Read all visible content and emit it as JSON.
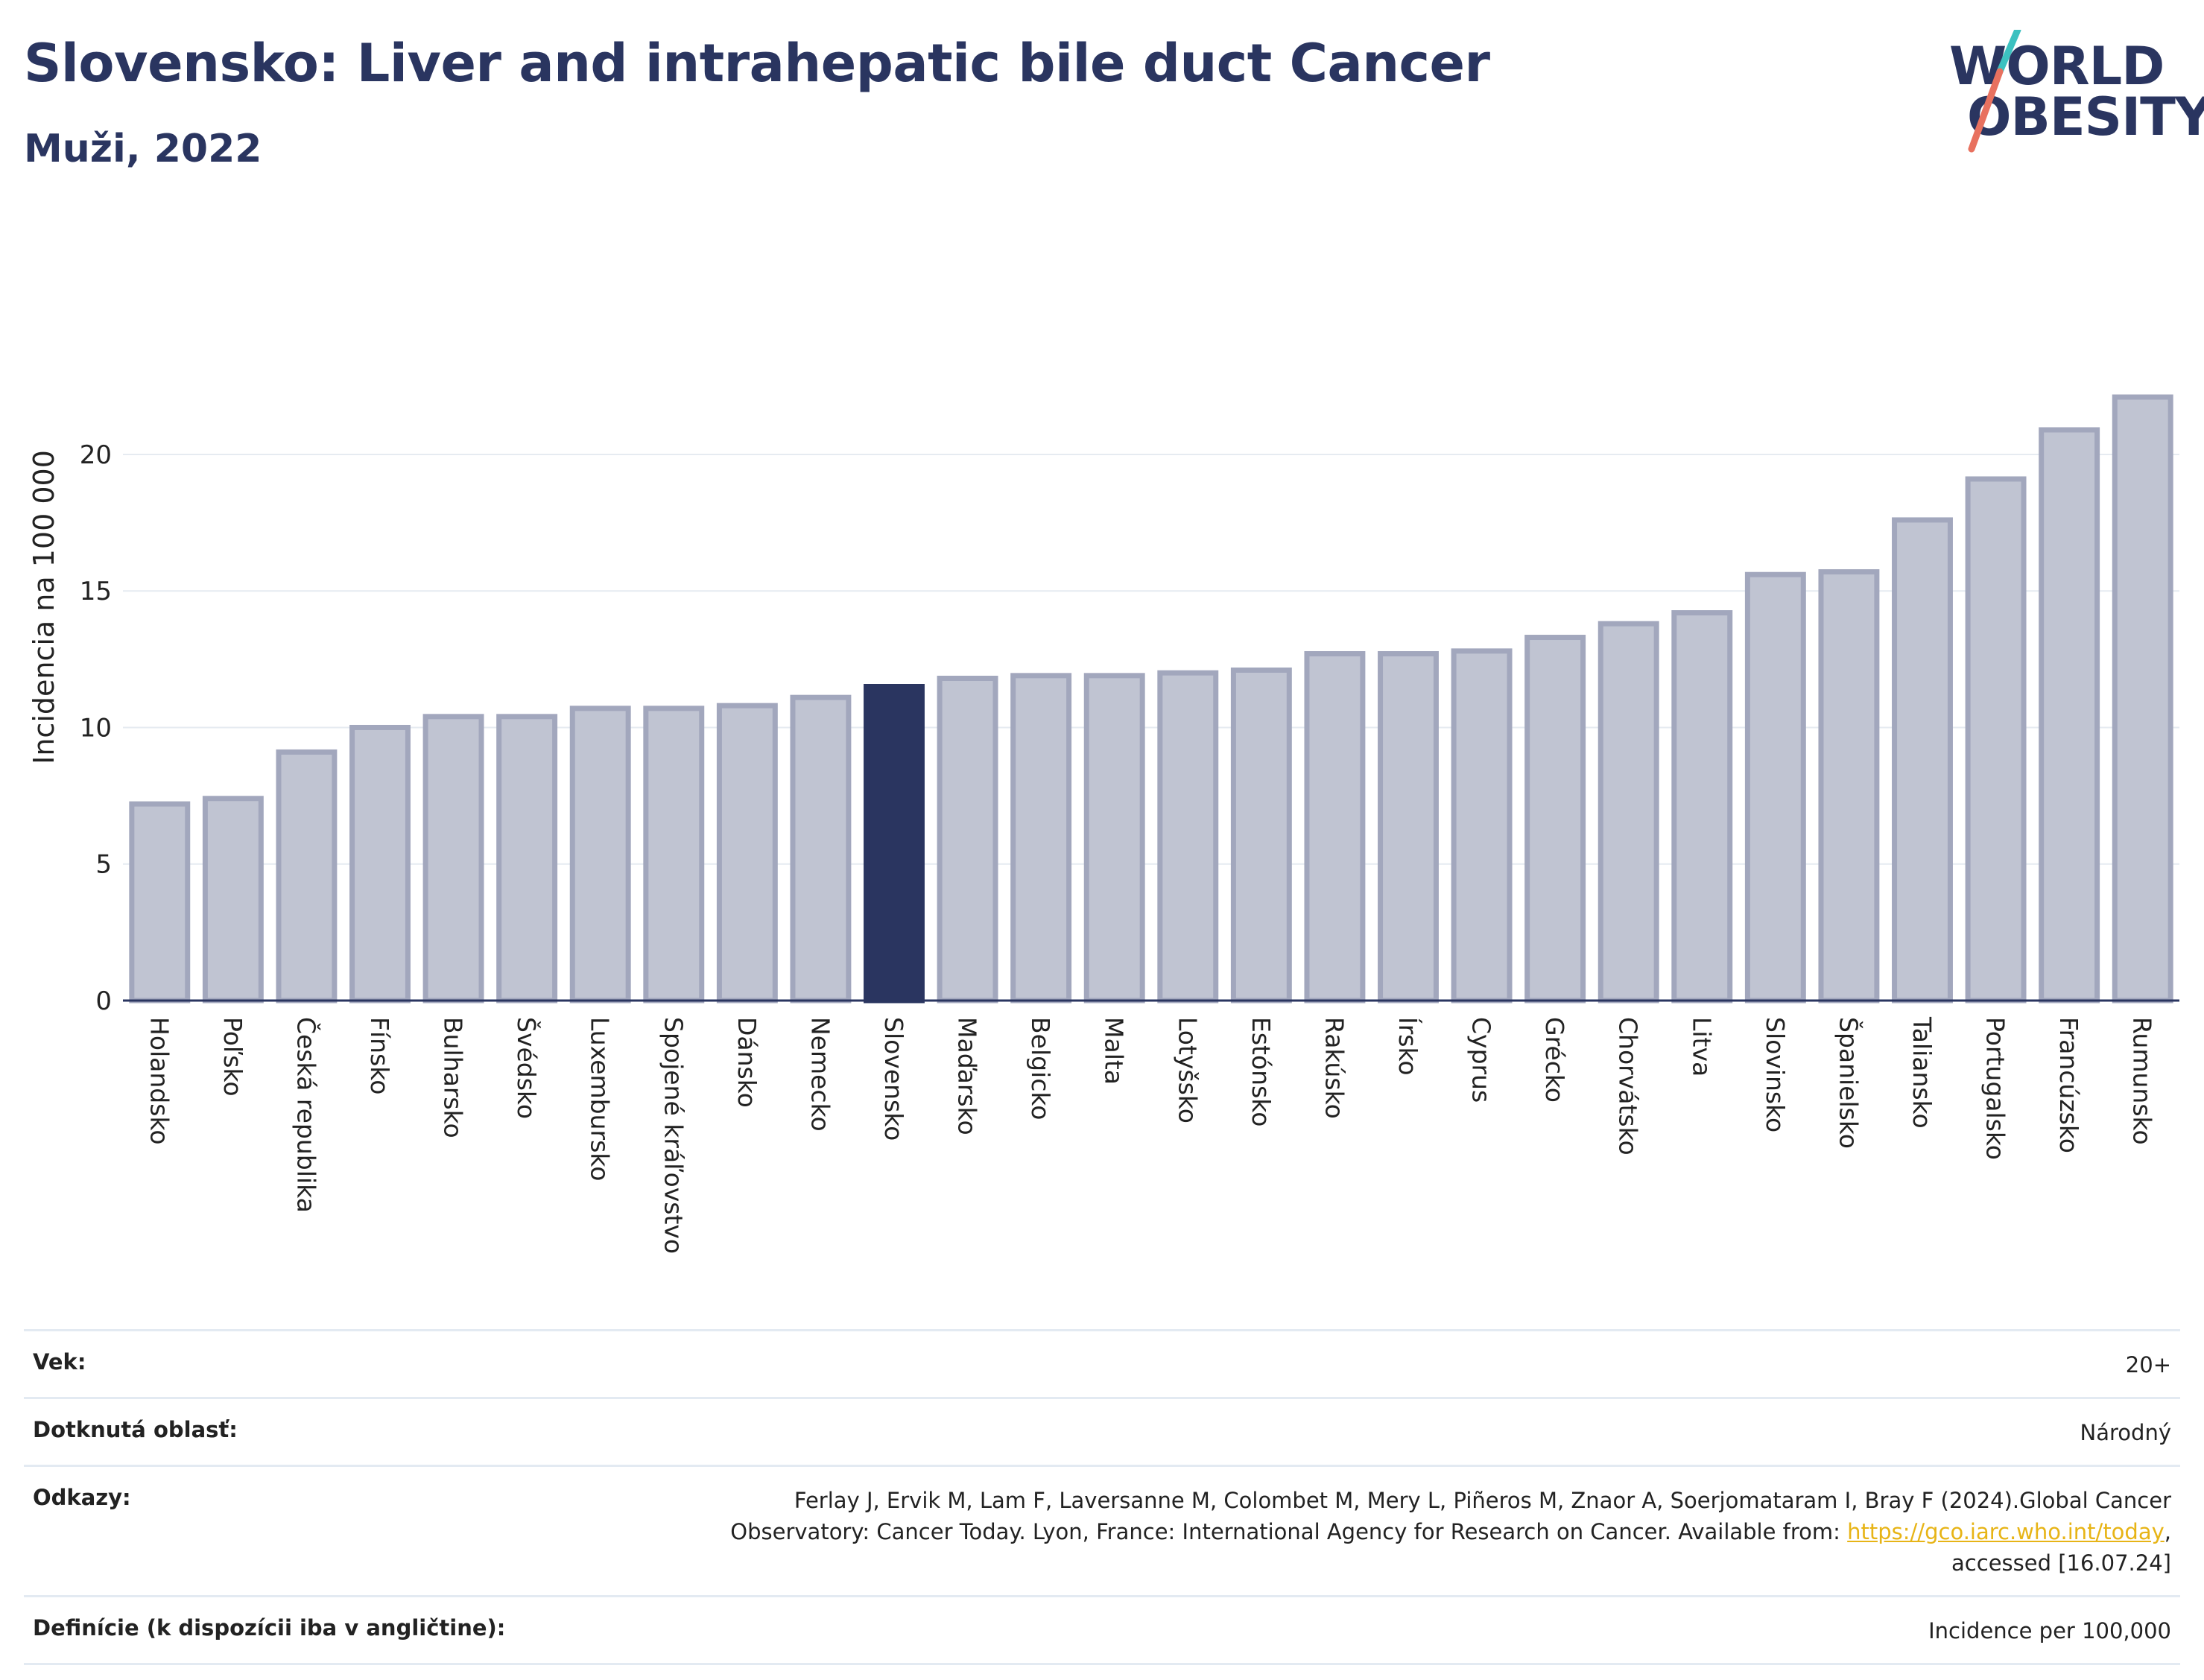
{
  "header": {
    "title": "Slovensko: Liver and intrahepatic bile duct Cancer",
    "subtitle": "Muži, 2022",
    "logo_line1": "WORLD",
    "logo_line2": "OBESITY"
  },
  "colors": {
    "highlight": "#2a3560",
    "bar_fill": "#c0c4d2",
    "bar_stroke": "#a2a7bd",
    "logo_teal": "#3cc1c0",
    "logo_red": "#e8715f"
  },
  "chart_data": {
    "type": "bar",
    "ylabel": "Incidencia na 100 000",
    "ylim": [
      0,
      23
    ],
    "yticks": [
      0,
      5,
      10,
      15,
      20
    ],
    "grid": true,
    "highlight": "Slovensko",
    "categories": [
      "Holandsko",
      "Poľsko",
      "Česká republika",
      "Fínsko",
      "Bulharsko",
      "Švédsko",
      "Luxembursko",
      "Spojené kráľovstvo",
      "Dánsko",
      "Nemecko",
      "Slovensko",
      "Maďarsko",
      "Belgicko",
      "Malta",
      "Lotyšsko",
      "Estónsko",
      "Rakúsko",
      "Írsko",
      "Cyprus",
      "Grécko",
      "Chorvátsko",
      "Litva",
      "Slovinsko",
      "Španielsko",
      "Taliansko",
      "Portugalsko",
      "Francúzsko",
      "Rumunsko"
    ],
    "values": [
      7.2,
      7.4,
      9.1,
      10.0,
      10.4,
      10.4,
      10.7,
      10.7,
      10.8,
      11.1,
      11.5,
      11.8,
      11.9,
      11.9,
      12.0,
      12.1,
      12.7,
      12.7,
      12.8,
      13.3,
      13.8,
      14.2,
      15.6,
      15.7,
      17.6,
      19.1,
      20.9,
      22.1
    ]
  },
  "meta": {
    "age_label": "Vek:",
    "age_value": "20+",
    "area_label": "Dotknutá oblasť:",
    "area_value": "Národný",
    "refs_label": "Odkazy:",
    "refs_line1": "Ferlay J, Ervik M, Lam F, Laversanne M, Colombet M, Mery L, Piñeros M, Znaor A, Soerjomataram I, Bray F (2024).Global Cancer",
    "refs_line2": "Observatory: Cancer Today. Lyon, France: International Agency for Research on Cancer. Available from:",
    "refs_link": "https://gco.iarc.who.int/today",
    "refs_line2_end": ",",
    "refs_line3": "accessed [16.07.24]",
    "defs_label": "Definície (k dispozícii iba v angličtine):",
    "defs_value": "Incidence per 100,000"
  }
}
